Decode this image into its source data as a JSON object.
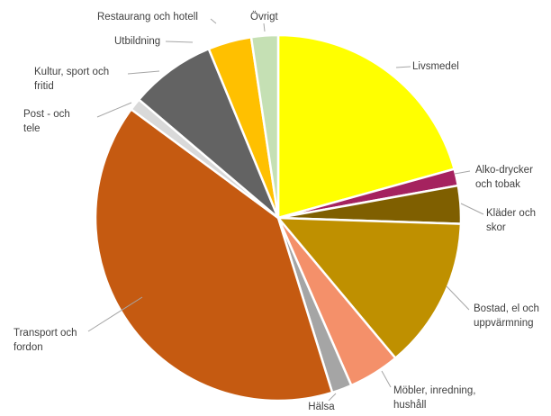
{
  "chart_data": {
    "type": "pie",
    "title": "",
    "slices": [
      {
        "label": "Livsmedel",
        "lines": [
          "Livsmedel"
        ],
        "value": 21.0,
        "color": "#ffff00"
      },
      {
        "label": "Alko-drycker och tobak",
        "lines": [
          "Alko-drycker",
          "och tobak"
        ],
        "value": 1.5,
        "color": "#a5225f"
      },
      {
        "label": "Kläder och skor",
        "lines": [
          "Kläder och",
          "skor"
        ],
        "value": 3.4,
        "color": "#7f5f00"
      },
      {
        "label": "Bostad, el och uppvärmning",
        "lines": [
          "Bostad, el och",
          "uppvärmning"
        ],
        "value": 13.6,
        "color": "#bf9000"
      },
      {
        "label": "Möbler, inredning, hushåll",
        "lines": [
          "Möbler, inredning,",
          "hushåll"
        ],
        "value": 4.6,
        "color": "#f4906a"
      },
      {
        "label": "Hälsa",
        "lines": [
          "Hälsa"
        ],
        "value": 1.8,
        "color": "#a5a5a5"
      },
      {
        "label": "Transport och fordon",
        "lines": [
          "Transport och",
          "fordon"
        ],
        "value": 40.5,
        "color": "#c55a11"
      },
      {
        "label": "Post - och tele",
        "lines": [
          "Post - och",
          "tele"
        ],
        "value": 1.1,
        "color": "#d9d9d9"
      },
      {
        "label": "Kultur, sport och fritid",
        "lines": [
          "Kultur, sport och",
          "fritid"
        ],
        "value": 7.7,
        "color": "#636363"
      },
      {
        "label": "Utbildning",
        "lines": [
          "Utbildning"
        ],
        "value": 3.9,
        "color": "#ffc000"
      },
      {
        "label": "Restaurang och hotell",
        "lines": [
          "Restaurang och hotell"
        ],
        "value": 0.0,
        "color": "#ffc000"
      },
      {
        "label": "Övrigt",
        "lines": [
          "Övrigt"
        ],
        "value": 2.4,
        "color": "#c5e0b4"
      }
    ],
    "start_angle_deg": 0,
    "direction": "clockwise",
    "legend": "none",
    "data_labels": "category names outside with leader lines"
  }
}
